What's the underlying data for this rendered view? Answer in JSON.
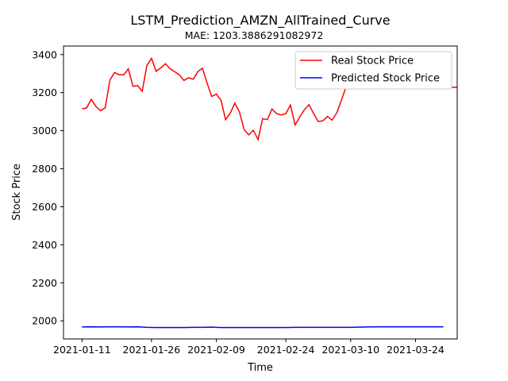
{
  "chart_data": {
    "type": "line",
    "title": "LSTM_Prediction_AMZN_AllTrained_Curve",
    "subtitle": "MAE: 1203.3886291082972",
    "xlabel": "Time",
    "ylabel": "Stock Price",
    "ylim": [
      1905,
      3445
    ],
    "yticks": [
      2000,
      2200,
      2400,
      2600,
      2800,
      3000,
      3200,
      3400
    ],
    "xlim": [
      "2021-01-07",
      "2021-04-02"
    ],
    "xticks": [
      "2021-01-11",
      "2021-01-26",
      "2021-02-09",
      "2021-02-24",
      "2021-03-10",
      "2021-03-24"
    ],
    "grid": false,
    "legend_position": "upper right",
    "series": [
      {
        "name": "Real Stock Price",
        "color": "#ff0000",
        "x": [
          "2021-01-11",
          "2021-01-12",
          "2021-01-13",
          "2021-01-14",
          "2021-01-15",
          "2021-01-16",
          "2021-01-17",
          "2021-01-18",
          "2021-01-19",
          "2021-01-20",
          "2021-01-21",
          "2021-01-22",
          "2021-01-23",
          "2021-01-24",
          "2021-01-25",
          "2021-01-26",
          "2021-01-27",
          "2021-01-28",
          "2021-01-29",
          "2021-01-30",
          "2021-01-31",
          "2021-02-01",
          "2021-02-02",
          "2021-02-03",
          "2021-02-04",
          "2021-02-05",
          "2021-02-06",
          "2021-02-07",
          "2021-02-08",
          "2021-02-09",
          "2021-02-10",
          "2021-02-11",
          "2021-02-12",
          "2021-02-13",
          "2021-02-14",
          "2021-02-15",
          "2021-02-16",
          "2021-02-17",
          "2021-02-18",
          "2021-02-19",
          "2021-02-20",
          "2021-02-21",
          "2021-02-22",
          "2021-02-23",
          "2021-02-24",
          "2021-02-25",
          "2021-02-26",
          "2021-02-27",
          "2021-02-28",
          "2021-03-01",
          "2021-03-02",
          "2021-03-03",
          "2021-03-04",
          "2021-03-05",
          "2021-03-06",
          "2021-03-07",
          "2021-03-08",
          "2021-03-09",
          "2021-03-10",
          "2021-03-11",
          "2021-03-12",
          "2021-03-13",
          "2021-03-14",
          "2021-03-15",
          "2021-03-16",
          "2021-03-17",
          "2021-03-18",
          "2021-03-19",
          "2021-03-20",
          "2021-03-21",
          "2021-03-22",
          "2021-03-23",
          "2021-03-24",
          "2021-03-25",
          "2021-03-26",
          "2021-03-27",
          "2021-03-28",
          "2021-03-29",
          "2021-03-30",
          "2021-03-31",
          "2021-04-01",
          "2021-04-02"
        ],
        "values": [
          3115,
          3120,
          3165,
          3128,
          3105,
          3120,
          3265,
          3306,
          3294,
          3294,
          3325,
          3233,
          3237,
          3207,
          3342,
          3380,
          3312,
          3330,
          3352,
          3326,
          3310,
          3294,
          3264,
          3278,
          3270,
          3310,
          3328,
          3250,
          3180,
          3192,
          3160,
          3058,
          3092,
          3145,
          3098,
          3005,
          2978,
          3002,
          2953,
          3063,
          3058,
          3114,
          3090,
          3082,
          3090,
          3135,
          3030,
          3072,
          3110,
          3137,
          3090,
          3048,
          3052,
          3075,
          3055,
          3094,
          3160,
          3230,
          3228,
          3228,
          3228,
          3228,
          3228,
          3228,
          3228,
          3228,
          3228,
          3228,
          3228,
          3228,
          3228,
          3228,
          3228,
          3228,
          3228,
          3228,
          3228,
          3228,
          3228,
          3228,
          3228,
          3228
        ]
      },
      {
        "name": "Predicted Stock Price",
        "color": "#0000ff",
        "x": [
          "2021-01-11",
          "2021-01-13",
          "2021-01-15",
          "2021-01-17",
          "2021-01-19",
          "2021-01-21",
          "2021-01-23",
          "2021-01-25",
          "2021-01-27",
          "2021-01-29",
          "2021-01-31",
          "2021-02-02",
          "2021-02-04",
          "2021-02-06",
          "2021-02-08",
          "2021-02-10",
          "2021-02-12",
          "2021-02-14",
          "2021-02-16",
          "2021-02-18",
          "2021-02-20",
          "2021-02-22",
          "2021-02-24",
          "2021-02-26",
          "2021-02-28",
          "2021-03-02",
          "2021-03-04",
          "2021-03-06",
          "2021-03-08",
          "2021-03-10",
          "2021-03-12",
          "2021-03-14",
          "2021-03-16",
          "2021-03-18",
          "2021-03-20",
          "2021-03-22",
          "2021-03-24",
          "2021-03-26",
          "2021-03-28",
          "2021-03-30"
        ],
        "values": [
          1968,
          1969,
          1968,
          1969,
          1969,
          1968,
          1969,
          1966,
          1965,
          1965,
          1965,
          1965,
          1966,
          1966,
          1967,
          1965,
          1965,
          1965,
          1965,
          1965,
          1965,
          1965,
          1965,
          1966,
          1966,
          1966,
          1966,
          1966,
          1966,
          1966,
          1967,
          1968,
          1969,
          1969,
          1969,
          1969,
          1969,
          1969,
          1969,
          1969
        ]
      }
    ]
  }
}
